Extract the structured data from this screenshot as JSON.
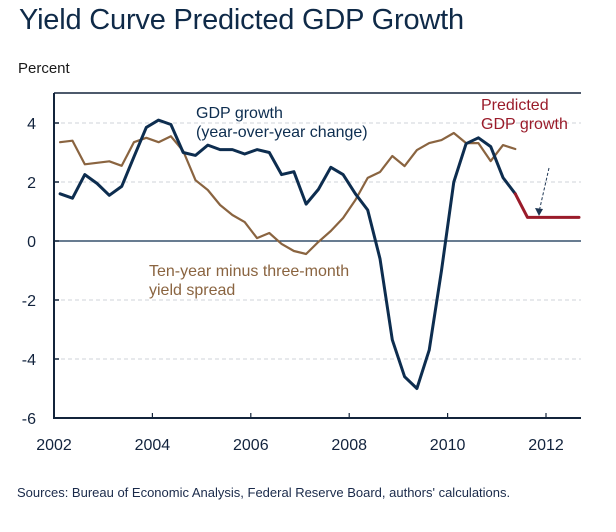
{
  "chart_data": {
    "type": "line",
    "title": "Yield Curve Predicted GDP Growth",
    "ylabel": "Percent",
    "xlabel": "",
    "xlim": [
      2002,
      2012.67
    ],
    "ylim": [
      -6,
      5
    ],
    "xticks": [
      2002,
      2004,
      2006,
      2008,
      2010,
      2012
    ],
    "yticks": [
      -6,
      -4,
      -2,
      0,
      2,
      4
    ],
    "grid": true,
    "x_start": 2002.125,
    "x_step": 0.25,
    "series": [
      {
        "name": "GDP growth (year-over-year change)",
        "color": "#0d2d4f",
        "values": [
          1.6,
          1.45,
          2.25,
          1.95,
          1.55,
          1.85,
          2.85,
          3.85,
          4.1,
          3.95,
          3.0,
          2.9,
          3.25,
          3.1,
          3.1,
          2.95,
          3.1,
          3.0,
          2.25,
          2.35,
          1.25,
          1.75,
          2.5,
          2.25,
          1.6,
          1.05,
          -0.6,
          -3.35,
          -4.6,
          -5.0,
          -3.7,
          -1.0,
          2.0,
          3.3,
          3.5,
          3.2,
          2.15,
          1.6
        ]
      },
      {
        "name": "Ten-year minus three-month yield spread",
        "color": "#8a6440",
        "values": [
          3.35,
          3.4,
          2.6,
          2.65,
          2.7,
          2.55,
          3.35,
          3.5,
          3.35,
          3.55,
          3.05,
          2.06,
          1.73,
          1.22,
          0.88,
          0.64,
          0.1,
          0.27,
          -0.1,
          -0.34,
          -0.44,
          -0.03,
          0.34,
          0.78,
          1.39,
          2.14,
          2.34,
          2.88,
          2.54,
          3.08,
          3.32,
          3.42,
          3.66,
          3.32,
          3.32,
          2.71,
          3.25,
          3.12
        ]
      },
      {
        "name": "Predicted GDP growth",
        "color": "#9a1b2a",
        "x_start": 2011.375,
        "values": [
          1.6,
          0.8,
          0.8,
          0.8,
          0.8,
          0.8,
          0.8
        ]
      }
    ],
    "annotations": [
      {
        "text": [
          "GDP growth",
          "(year-over-year change)"
        ],
        "series": "GDP growth"
      },
      {
        "text": [
          "Ten-year minus three-month",
          "yield spread"
        ],
        "series": "spread"
      },
      {
        "text": [
          "Predicted",
          "GDP growth"
        ],
        "series": "predicted",
        "arrow": true
      }
    ]
  },
  "header": {
    "title": "Yield Curve Predicted GDP Growth",
    "units": "Percent"
  },
  "footer": {
    "source": "Sources: Bureau of Economic Analysis, Federal Reserve Board, authors' calculations."
  }
}
